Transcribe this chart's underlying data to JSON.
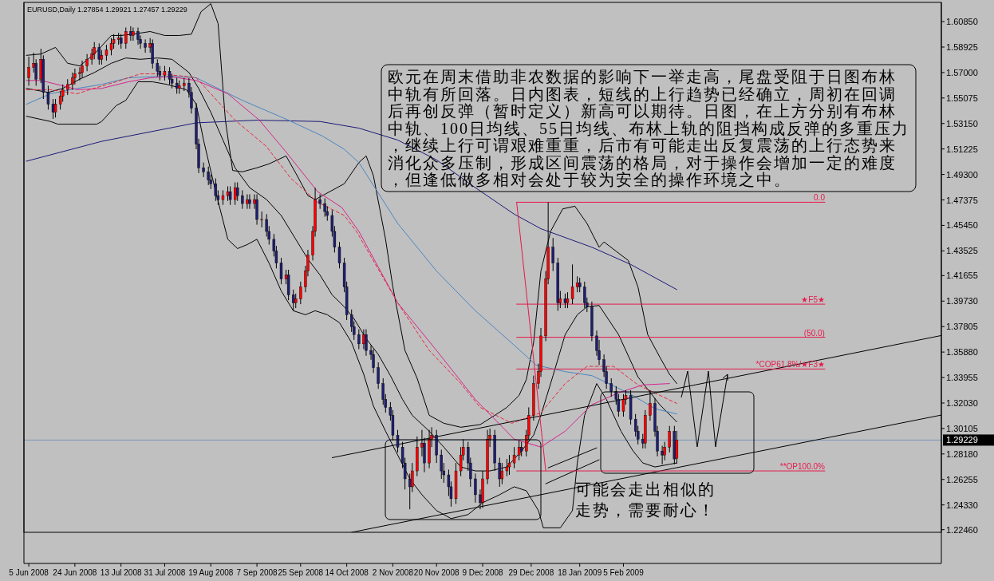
{
  "chart_data": {
    "type": "candlestick",
    "title": "EURUSD,Daily  1.27854 1.29921 1.27457 1.29229",
    "x": [
      "2008-06-05",
      "2008-06-07",
      "2008-06-08",
      "2008-06-10",
      "2008-06-11",
      "2008-06-13",
      "2008-06-15",
      "2008-06-16",
      "2008-06-18",
      "2008-06-19",
      "2008-06-21",
      "2008-06-23",
      "2008-06-24",
      "2008-06-26",
      "2008-06-27",
      "2008-06-29",
      "2008-07-01",
      "2008-07-02",
      "2008-07-04",
      "2008-07-05",
      "2008-07-07",
      "2008-07-09",
      "2008-07-10",
      "2008-07-12",
      "2008-07-13",
      "2008-07-15",
      "2008-07-17",
      "2008-07-18",
      "2008-07-20",
      "2008-07-21",
      "2008-07-23",
      "2008-07-25",
      "2008-07-26",
      "2008-07-28",
      "2008-07-29",
      "2008-07-31",
      "2008-08-02",
      "2008-08-03",
      "2008-08-05",
      "2008-08-06",
      "2008-08-08",
      "2008-08-10",
      "2008-08-11",
      "2008-08-13",
      "2008-08-14",
      "2008-08-16",
      "2008-08-18",
      "2008-08-19",
      "2008-08-21",
      "2008-08-22",
      "2008-08-24",
      "2008-08-26",
      "2008-08-27",
      "2008-08-29",
      "2008-08-30",
      "2008-09-01",
      "2008-09-03",
      "2008-09-04",
      "2008-09-06",
      "2008-09-07",
      "2008-09-09",
      "2008-09-11",
      "2008-09-12",
      "2008-09-14",
      "2008-09-15",
      "2008-09-17",
      "2008-09-19",
      "2008-09-20",
      "2008-09-22",
      "2008-09-23",
      "2008-09-25",
      "2008-09-27",
      "2008-09-28",
      "2008-09-30",
      "2008-10-01",
      "2008-10-03",
      "2008-10-05",
      "2008-10-06",
      "2008-10-08",
      "2008-10-09",
      "2008-10-11",
      "2008-10-13",
      "2008-10-14",
      "2008-10-16",
      "2008-10-17",
      "2008-10-19",
      "2008-10-21",
      "2008-10-22",
      "2008-10-24",
      "2008-10-25",
      "2008-10-27",
      "2008-10-29",
      "2008-10-30",
      "2008-11-01",
      "2008-11-02",
      "2008-11-04",
      "2008-11-06",
      "2008-11-07",
      "2008-11-09",
      "2008-11-10",
      "2008-11-12",
      "2008-11-14",
      "2008-11-15",
      "2008-11-17",
      "2008-11-18",
      "2008-11-20",
      "2008-11-22",
      "2008-11-23",
      "2008-11-25",
      "2008-11-26",
      "2008-11-28",
      "2008-11-30",
      "2008-12-01",
      "2008-12-03",
      "2008-12-04",
      "2008-12-06",
      "2008-12-08",
      "2008-12-09",
      "2008-12-11",
      "2008-12-12",
      "2008-12-14",
      "2008-12-16",
      "2008-12-17",
      "2008-12-19",
      "2008-12-20",
      "2008-12-22",
      "2008-12-24",
      "2008-12-25",
      "2008-12-27",
      "2008-12-28",
      "2008-12-30",
      "2009-01-01",
      "2009-01-02",
      "2009-01-04",
      "2009-01-05",
      "2009-01-07",
      "2009-01-09",
      "2009-01-10",
      "2009-01-12",
      "2009-01-13",
      "2009-01-15",
      "2009-01-17",
      "2009-01-18",
      "2009-01-20",
      "2009-01-21",
      "2009-01-23",
      "2009-01-25",
      "2009-01-26",
      "2009-01-28",
      "2009-01-29",
      "2009-01-31",
      "2009-02-02",
      "2009-02-03",
      "2009-02-05",
      "2009-02-06",
      "2009-02-08",
      "2009-02-10",
      "2009-02-11",
      "2009-02-13",
      "2009-02-14",
      "2009-02-16",
      "2009-02-18",
      "2009-02-19",
      "2009-02-21",
      "2009-02-22",
      "2009-02-24",
      "2009-02-26",
      "2009-02-27"
    ],
    "colors": [
      "#ff0000",
      "#ff0000",
      "#1e1e6e",
      "#ff0000",
      "#1e1e6e",
      "#1e1e6e",
      "#1e1e6e",
      "#ff0000",
      "#ff0000",
      "#ff0000",
      "#ff0000",
      "#ff0000",
      "#ff0000",
      "#ff0000",
      "#ff0000",
      "#ff0000",
      "#ff0000",
      "#ff0000",
      "#1e1e6e",
      "#ff0000",
      "#ff0000",
      "#ff0000",
      "#ff0000",
      "#ff0000",
      "#1e1e6e",
      "#ff0000",
      "#1e1e6e",
      "#ff0000",
      "#1e1e6e",
      "#1e1e6e",
      "#1e1e6e",
      "#ff0000",
      "#1e1e6e",
      "#1e1e6e",
      "#1e1e6e",
      "#ff0000",
      "#1e1e6e",
      "#1e1e6e",
      "#1e1e6e",
      "#ff0000",
      "#ff0000",
      "#1e1e6e",
      "#1e1e6e",
      "#1e1e6e",
      "#1e1e6e",
      "#1e1e6e",
      "#1e1e6e",
      "#1e1e6e",
      "#1e1e6e",
      "#1e1e6e",
      "#ff0000",
      "#ff0000",
      "#1e1e6e",
      "#ff0000",
      "#1e1e6e",
      "#1e1e6e",
      "#ff0000",
      "#1e1e6e",
      "#ff0000",
      "#1e1e6e",
      "#ff0000",
      "#1e1e6e",
      "#1e1e6e",
      "#1e1e6e",
      "#1e1e6e",
      "#1e1e6e",
      "#ff0000",
      "#1e1e6e",
      "#1e1e6e",
      "#ff0000",
      "#ff0000",
      "#ff0000",
      "#ff0000",
      "#ff0000",
      "#ff0000",
      "#1e1e6e",
      "#1e1e6e",
      "#1e1e6e",
      "#1e1e6e",
      "#1e1e6e",
      "#1e1e6e",
      "#1e1e6e",
      "#1e1e6e",
      "#1e1e6e",
      "#1e1e6e",
      "#1e1e6e",
      "#ff0000",
      "#1e1e6e",
      "#1e1e6e",
      "#1e1e6e",
      "#1e1e6e",
      "#1e1e6e",
      "#1e1e6e",
      "#1e1e6e",
      "#1e1e6e",
      "#1e1e6e",
      "#1e1e6e",
      "#1e1e6e",
      "#1e1e6e",
      "#ff0000",
      "#ff0000",
      "#ff0000",
      "#1e1e6e",
      "#ff0000",
      "#ff0000",
      "#1e1e6e",
      "#1e1e6e",
      "#1e1e6e",
      "#1e1e6e",
      "#1e1e6e",
      "#ff0000",
      "#ff0000",
      "#ff0000",
      "#1e1e6e",
      "#1e1e6e",
      "#1e1e6e",
      "#1e1e6e",
      "#ff0000",
      "#ff0000",
      "#ff0000",
      "#1e1e6e",
      "#1e1e6e",
      "#ff0000",
      "#ff0000",
      "#ff0000",
      "#ff0000",
      "#ff0000",
      "#1e1e6e",
      "#ff0000",
      "#ff0000",
      "#ff0000",
      "#ff0000",
      "#ff0000",
      "#ff0000",
      "#ff0000",
      "#1e1e6e",
      "#1e1e6e",
      "#ff0000",
      "#1e1e6e",
      "#ff0000",
      "#ff0000",
      "#ff0000",
      "#1e1e6e",
      "#1e1e6e",
      "#1e1e6e",
      "#1e1e6e",
      "#1e1e6e",
      "#1e1e6e",
      "#1e1e6e",
      "#1e1e6e",
      "#1e1e6e",
      "#1e1e6e",
      "#1e1e6e",
      "#ff0000",
      "#ff0000",
      "#1e1e6e",
      "#1e1e6e",
      "#1e1e6e",
      "#1e1e6e",
      "#ff0000",
      "#ff0000",
      "#1e1e6e",
      "#1e1e6e",
      "#1e1e6e",
      "#ff0000",
      "#ff0000",
      "#1e1e6e",
      "#ff0000"
    ],
    "ohlc": [
      [
        1.566,
        1.582,
        1.56,
        1.574
      ],
      [
        1.574,
        1.585,
        1.57,
        1.577
      ],
      [
        1.577,
        1.58,
        1.56,
        1.565
      ],
      [
        1.565,
        1.588,
        1.562,
        1.58
      ],
      [
        1.58,
        1.583,
        1.55,
        1.555
      ],
      [
        1.555,
        1.56,
        1.542,
        1.546
      ],
      [
        1.546,
        1.55,
        1.535,
        1.54
      ],
      [
        1.54,
        1.55,
        1.536,
        1.546
      ],
      [
        1.546,
        1.556,
        1.542,
        1.552
      ],
      [
        1.552,
        1.561,
        1.548,
        1.557
      ],
      [
        1.557,
        1.565,
        1.553,
        1.561
      ],
      [
        1.561,
        1.57,
        1.557,
        1.566
      ],
      [
        1.566,
        1.573,
        1.561,
        1.569
      ],
      [
        1.569,
        1.574,
        1.564,
        1.57
      ],
      [
        1.57,
        1.579,
        1.566,
        1.575
      ],
      [
        1.575,
        1.584,
        1.571,
        1.58
      ],
      [
        1.58,
        1.588,
        1.576,
        1.584
      ],
      [
        1.584,
        1.593,
        1.58,
        1.589
      ],
      [
        1.589,
        1.592,
        1.576,
        1.58
      ],
      [
        1.58,
        1.587,
        1.576,
        1.583
      ],
      [
        1.583,
        1.591,
        1.579,
        1.587
      ],
      [
        1.587,
        1.596,
        1.583,
        1.592
      ],
      [
        1.592,
        1.599,
        1.588,
        1.595
      ],
      [
        1.595,
        1.6,
        1.591,
        1.596
      ],
      [
        1.596,
        1.599,
        1.588,
        1.592
      ],
      [
        1.592,
        1.604,
        1.588,
        1.601
      ],
      [
        1.601,
        1.605,
        1.594,
        1.598
      ],
      [
        1.598,
        1.604,
        1.594,
        1.601
      ],
      [
        1.601,
        1.604,
        1.591,
        1.595
      ],
      [
        1.595,
        1.598,
        1.588,
        1.592
      ],
      [
        1.592,
        1.595,
        1.585,
        1.589
      ],
      [
        1.589,
        1.596,
        1.585,
        1.592
      ],
      [
        1.592,
        1.595,
        1.573,
        1.577
      ],
      [
        1.577,
        1.58,
        1.567,
        1.571
      ],
      [
        1.571,
        1.575,
        1.564,
        1.568
      ],
      [
        1.568,
        1.575,
        1.564,
        1.571
      ],
      [
        1.571,
        1.574,
        1.561,
        1.565
      ],
      [
        1.565,
        1.569,
        1.558,
        1.562
      ],
      [
        1.562,
        1.566,
        1.554,
        1.558
      ],
      [
        1.558,
        1.564,
        1.554,
        1.56
      ],
      [
        1.56,
        1.566,
        1.556,
        1.562
      ],
      [
        1.562,
        1.566,
        1.551,
        1.555
      ],
      [
        1.555,
        1.559,
        1.539,
        1.543
      ],
      [
        1.543,
        1.547,
        1.512,
        1.516
      ],
      [
        1.516,
        1.52,
        1.494,
        1.498
      ],
      [
        1.498,
        1.502,
        1.491,
        1.495
      ],
      [
        1.495,
        1.499,
        1.485,
        1.489
      ],
      [
        1.489,
        1.493,
        1.482,
        1.486
      ],
      [
        1.486,
        1.49,
        1.473,
        1.477
      ],
      [
        1.477,
        1.481,
        1.47,
        1.474
      ],
      [
        1.474,
        1.481,
        1.47,
        1.477
      ],
      [
        1.477,
        1.484,
        1.473,
        1.48
      ],
      [
        1.48,
        1.484,
        1.47,
        1.474
      ],
      [
        1.474,
        1.487,
        1.47,
        1.483
      ],
      [
        1.483,
        1.487,
        1.473,
        1.477
      ],
      [
        1.477,
        1.481,
        1.467,
        1.471
      ],
      [
        1.471,
        1.478,
        1.467,
        1.474
      ],
      [
        1.474,
        1.478,
        1.467,
        1.471
      ],
      [
        1.471,
        1.478,
        1.467,
        1.474
      ],
      [
        1.474,
        1.478,
        1.455,
        1.459
      ],
      [
        1.459,
        1.465,
        1.453,
        1.459
      ],
      [
        1.459,
        1.463,
        1.446,
        1.45
      ],
      [
        1.45,
        1.454,
        1.44,
        1.444
      ],
      [
        1.444,
        1.448,
        1.431,
        1.435
      ],
      [
        1.435,
        1.439,
        1.422,
        1.426
      ],
      [
        1.426,
        1.43,
        1.41,
        1.414
      ],
      [
        1.414,
        1.421,
        1.41,
        1.417
      ],
      [
        1.417,
        1.421,
        1.398,
        1.402
      ],
      [
        1.402,
        1.406,
        1.39,
        1.396
      ],
      [
        1.396,
        1.403,
        1.392,
        1.399
      ],
      [
        1.399,
        1.412,
        1.395,
        1.408
      ],
      [
        1.408,
        1.424,
        1.404,
        1.42
      ],
      [
        1.42,
        1.436,
        1.416,
        1.432
      ],
      [
        1.432,
        1.454,
        1.428,
        1.45
      ],
      [
        1.45,
        1.483,
        1.446,
        1.474
      ],
      [
        1.474,
        1.478,
        1.467,
        1.471
      ],
      [
        1.471,
        1.475,
        1.461,
        1.465
      ],
      [
        1.465,
        1.469,
        1.458,
        1.462
      ],
      [
        1.462,
        1.466,
        1.446,
        1.45
      ],
      [
        1.45,
        1.454,
        1.434,
        1.438
      ],
      [
        1.438,
        1.442,
        1.422,
        1.426
      ],
      [
        1.426,
        1.43,
        1.404,
        1.408
      ],
      [
        1.408,
        1.412,
        1.383,
        1.387
      ],
      [
        1.387,
        1.391,
        1.374,
        1.378
      ],
      [
        1.378,
        1.382,
        1.368,
        1.372
      ],
      [
        1.372,
        1.376,
        1.361,
        1.365
      ],
      [
        1.365,
        1.376,
        1.361,
        1.372
      ],
      [
        1.372,
        1.376,
        1.356,
        1.36
      ],
      [
        1.36,
        1.364,
        1.353,
        1.357
      ],
      [
        1.357,
        1.361,
        1.343,
        1.347
      ],
      [
        1.347,
        1.351,
        1.331,
        1.335
      ],
      [
        1.335,
        1.339,
        1.319,
        1.323
      ],
      [
        1.323,
        1.327,
        1.313,
        1.317
      ],
      [
        1.317,
        1.321,
        1.307,
        1.311
      ],
      [
        1.311,
        1.315,
        1.292,
        1.296
      ],
      [
        1.296,
        1.3,
        1.283,
        1.287
      ],
      [
        1.287,
        1.291,
        1.271,
        1.275
      ],
      [
        1.275,
        1.279,
        1.255,
        1.263
      ],
      [
        1.263,
        1.267,
        1.24,
        1.257
      ],
      [
        1.257,
        1.275,
        1.253,
        1.269
      ],
      [
        1.269,
        1.295,
        1.265,
        1.287
      ],
      [
        1.287,
        1.3,
        1.28,
        1.29
      ],
      [
        1.29,
        1.294,
        1.268,
        1.275
      ],
      [
        1.275,
        1.3,
        1.271,
        1.293
      ],
      [
        1.293,
        1.302,
        1.287,
        1.296
      ],
      [
        1.296,
        1.3,
        1.275,
        1.281
      ],
      [
        1.281,
        1.285,
        1.263,
        1.269
      ],
      [
        1.269,
        1.275,
        1.26,
        1.266
      ],
      [
        1.266,
        1.27,
        1.25,
        1.257
      ],
      [
        1.257,
        1.261,
        1.242,
        1.248
      ],
      [
        1.248,
        1.275,
        1.244,
        1.269
      ],
      [
        1.269,
        1.287,
        1.265,
        1.281
      ],
      [
        1.281,
        1.293,
        1.277,
        1.287
      ],
      [
        1.287,
        1.291,
        1.269,
        1.275
      ],
      [
        1.275,
        1.279,
        1.257,
        1.263
      ],
      [
        1.263,
        1.267,
        1.245,
        1.251
      ],
      [
        1.251,
        1.255,
        1.24,
        1.245
      ],
      [
        1.245,
        1.269,
        1.241,
        1.263
      ],
      [
        1.263,
        1.3,
        1.259,
        1.293
      ],
      [
        1.293,
        1.301,
        1.287,
        1.296
      ],
      [
        1.296,
        1.3,
        1.269,
        1.275
      ],
      [
        1.275,
        1.279,
        1.257,
        1.263
      ],
      [
        1.263,
        1.275,
        1.259,
        1.269
      ],
      [
        1.269,
        1.278,
        1.265,
        1.272
      ],
      [
        1.272,
        1.281,
        1.266,
        1.275
      ],
      [
        1.275,
        1.287,
        1.271,
        1.281
      ],
      [
        1.281,
        1.292,
        1.277,
        1.287
      ],
      [
        1.287,
        1.291,
        1.28,
        1.284
      ],
      [
        1.284,
        1.3,
        1.28,
        1.296
      ],
      [
        1.296,
        1.317,
        1.292,
        1.311
      ],
      [
        1.311,
        1.341,
        1.307,
        1.335
      ],
      [
        1.335,
        1.35,
        1.331,
        1.344
      ],
      [
        1.344,
        1.377,
        1.34,
        1.371
      ],
      [
        1.371,
        1.42,
        1.367,
        1.414
      ],
      [
        1.414,
        1.472,
        1.41,
        1.438
      ],
      [
        1.438,
        1.445,
        1.42,
        1.426
      ],
      [
        1.426,
        1.43,
        1.39,
        1.396
      ],
      [
        1.396,
        1.405,
        1.392,
        1.399
      ],
      [
        1.399,
        1.403,
        1.392,
        1.396
      ],
      [
        1.396,
        1.404,
        1.392,
        1.399
      ],
      [
        1.399,
        1.425,
        1.395,
        1.408
      ],
      [
        1.408,
        1.416,
        1.404,
        1.411
      ],
      [
        1.411,
        1.415,
        1.404,
        1.408
      ],
      [
        1.408,
        1.412,
        1.392,
        1.396
      ],
      [
        1.396,
        1.4,
        1.389,
        1.393
      ],
      [
        1.393,
        1.397,
        1.367,
        1.371
      ],
      [
        1.371,
        1.375,
        1.356,
        1.36
      ],
      [
        1.36,
        1.368,
        1.349,
        1.353
      ],
      [
        1.353,
        1.357,
        1.34,
        1.344
      ],
      [
        1.344,
        1.348,
        1.331,
        1.335
      ],
      [
        1.335,
        1.339,
        1.325,
        1.329
      ],
      [
        1.329,
        1.333,
        1.319,
        1.323
      ],
      [
        1.323,
        1.327,
        1.31,
        1.314
      ],
      [
        1.314,
        1.327,
        1.31,
        1.323
      ],
      [
        1.323,
        1.33,
        1.319,
        1.326
      ],
      [
        1.326,
        1.33,
        1.304,
        1.308
      ],
      [
        1.308,
        1.312,
        1.295,
        1.299
      ],
      [
        1.299,
        1.303,
        1.289,
        1.293
      ],
      [
        1.293,
        1.297,
        1.286,
        1.29
      ],
      [
        1.29,
        1.315,
        1.286,
        1.311
      ],
      [
        1.311,
        1.33,
        1.307,
        1.32
      ],
      [
        1.32,
        1.324,
        1.295,
        1.299
      ],
      [
        1.299,
        1.303,
        1.28,
        1.284
      ],
      [
        1.284,
        1.288,
        1.274,
        1.281
      ],
      [
        1.281,
        1.291,
        1.277,
        1.287
      ],
      [
        1.287,
        1.303,
        1.283,
        1.299
      ],
      [
        1.299,
        1.303,
        1.274,
        1.278
      ],
      [
        1.27854,
        1.29921,
        1.27457,
        1.29229
      ]
    ],
    "series": [
      {
        "type": "line",
        "color": "#000000",
        "x": [
          "2008-06-04",
          "2008-06-10",
          "2008-06-16",
          "2008-06-21",
          "2008-06-26",
          "2008-07-02",
          "2008-07-09",
          "2008-07-13",
          "2008-07-18",
          "2008-07-25",
          "2008-07-31",
          "2008-08-06",
          "2008-08-11",
          "2008-08-15",
          "2008-08-19",
          "2008-08-22",
          "2008-08-25",
          "2008-08-28",
          "2008-09-01",
          "2008-09-07",
          "2008-09-12",
          "2008-09-19",
          "2008-09-23",
          "2008-09-28",
          "2008-10-01",
          "2008-10-05",
          "2008-10-13",
          "2008-10-19",
          "2008-10-22",
          "2008-10-25",
          "2008-10-30",
          "2008-11-02",
          "2008-11-07",
          "2008-11-12",
          "2008-11-17",
          "2008-11-23",
          "2008-11-30",
          "2008-12-08",
          "2008-12-14",
          "2008-12-19",
          "2008-12-24",
          "2008-12-27",
          "2008-12-30",
          "2009-01-02",
          "2009-01-06",
          "2009-01-11",
          "2009-01-16",
          "2009-01-21",
          "2009-01-26",
          "2009-01-28",
          "2009-02-02",
          "2009-02-07",
          "2009-02-11",
          "2009-02-15",
          "2009-02-20",
          "2009-02-24",
          "2009-02-27"
        ],
        "values": [
          1.583,
          1.584,
          1.589,
          1.577,
          1.575,
          1.584,
          1.598,
          1.598,
          1.599,
          1.601,
          1.598,
          1.598,
          1.599,
          1.616,
          1.622,
          1.607,
          1.534,
          1.496,
          1.495,
          1.498,
          1.501,
          1.507,
          1.494,
          1.477,
          1.474,
          1.478,
          1.486,
          1.502,
          1.507,
          1.492,
          1.444,
          1.408,
          1.36,
          1.339,
          1.311,
          1.305,
          1.302,
          1.304,
          1.311,
          1.317,
          1.326,
          1.338,
          1.366,
          1.42,
          1.45,
          1.467,
          1.469,
          1.456,
          1.438,
          1.442,
          1.435,
          1.428,
          1.408,
          1.372,
          1.355,
          1.342,
          1.335
        ]
      },
      {
        "type": "line",
        "color": "#000000",
        "x": [
          "2008-06-04",
          "2008-06-13",
          "2008-06-19",
          "2008-06-26",
          "2008-07-02",
          "2008-07-09",
          "2008-07-15",
          "2008-07-21",
          "2008-07-28",
          "2008-08-03",
          "2008-08-10",
          "2008-08-14",
          "2008-08-19",
          "2008-08-24",
          "2008-08-29",
          "2008-09-04",
          "2008-09-11",
          "2008-09-17",
          "2008-09-23",
          "2008-09-28",
          "2008-10-03",
          "2008-10-08",
          "2008-10-13",
          "2008-10-17",
          "2008-10-22",
          "2008-10-27",
          "2008-11-01",
          "2008-11-06",
          "2008-11-10",
          "2008-11-17",
          "2008-11-23",
          "2008-11-30",
          "2008-12-06",
          "2008-12-12",
          "2008-12-19",
          "2008-12-25",
          "2008-12-30",
          "2009-01-02",
          "2009-01-07",
          "2009-01-12",
          "2009-01-17",
          "2009-01-21",
          "2009-01-26",
          "2009-02-03",
          "2009-02-11",
          "2009-02-20",
          "2009-02-27"
        ],
        "values": [
          1.558,
          1.555,
          1.558,
          1.565,
          1.57,
          1.577,
          1.581,
          1.58,
          1.581,
          1.58,
          1.57,
          1.558,
          1.54,
          1.519,
          1.498,
          1.483,
          1.474,
          1.462,
          1.444,
          1.429,
          1.417,
          1.402,
          1.393,
          1.384,
          1.369,
          1.357,
          1.341,
          1.323,
          1.311,
          1.299,
          1.287,
          1.272,
          1.269,
          1.269,
          1.272,
          1.284,
          1.296,
          1.311,
          1.341,
          1.372,
          1.387,
          1.393,
          1.394,
          1.372,
          1.34,
          1.319,
          1.306
        ]
      },
      {
        "type": "line",
        "color": "#000000",
        "x": [
          "2008-06-04",
          "2008-06-14",
          "2008-06-17",
          "2008-07-03",
          "2008-07-05",
          "2008-07-11",
          "2008-07-15",
          "2008-07-20",
          "2008-07-26",
          "2008-08-01",
          "2008-08-09",
          "2008-08-13",
          "2008-08-16",
          "2008-08-21",
          "2008-08-26",
          "2008-08-30",
          "2008-09-03",
          "2008-09-07",
          "2008-09-12",
          "2008-09-17",
          "2008-09-22",
          "2008-09-27",
          "2008-10-01",
          "2008-10-06",
          "2008-10-11",
          "2008-10-16",
          "2008-10-21",
          "2008-10-25",
          "2008-10-30",
          "2008-11-04",
          "2008-11-09",
          "2008-11-14",
          "2008-11-20",
          "2008-11-26",
          "2008-12-03",
          "2008-12-09",
          "2008-12-16",
          "2008-12-22",
          "2008-12-27",
          "2009-01-01",
          "2009-01-03",
          "2009-01-10",
          "2009-01-15",
          "2009-01-17",
          "2009-01-20",
          "2009-01-25",
          "2009-01-29",
          "2009-02-04",
          "2009-02-09",
          "2009-02-13",
          "2009-02-18",
          "2009-02-24",
          "2009-02-27"
        ],
        "values": [
          1.537,
          1.533,
          1.531,
          1.531,
          1.533,
          1.545,
          1.549,
          1.563,
          1.563,
          1.561,
          1.557,
          1.546,
          1.519,
          1.48,
          1.444,
          1.437,
          1.44,
          1.444,
          1.426,
          1.405,
          1.39,
          1.387,
          1.39,
          1.387,
          1.381,
          1.366,
          1.342,
          1.318,
          1.299,
          1.281,
          1.263,
          1.251,
          1.239,
          1.233,
          1.236,
          1.245,
          1.251,
          1.257,
          1.254,
          1.239,
          1.226,
          1.226,
          1.239,
          1.275,
          1.311,
          1.335,
          1.323,
          1.299,
          1.284,
          1.275,
          1.272,
          1.274,
          1.275
        ]
      },
      {
        "type": "line",
        "color": "#1a1a78",
        "x": [
          "2008-06-04",
          "2008-07-05",
          "2008-08-13",
          "2008-09-07",
          "2008-10-03",
          "2008-10-19",
          "2008-11-04",
          "2008-11-20",
          "2008-12-06",
          "2008-12-22",
          "2009-01-02",
          "2009-01-23",
          "2009-02-08",
          "2009-02-27"
        ],
        "values": [
          1.503,
          1.518,
          1.532,
          1.534,
          1.533,
          1.528,
          1.519,
          1.504,
          1.483,
          1.463,
          1.452,
          1.438,
          1.425,
          1.406
        ]
      },
      {
        "type": "line",
        "color": "#4a86c0",
        "x": [
          "2008-06-04",
          "2008-06-14",
          "2008-06-25",
          "2008-07-05",
          "2008-07-16",
          "2008-07-27",
          "2008-08-06",
          "2008-08-13",
          "2008-09-01",
          "2008-09-20",
          "2008-10-04",
          "2008-10-13",
          "2008-10-19",
          "2008-11-04",
          "2008-11-20",
          "2008-12-06",
          "2008-12-22",
          "2008-12-31",
          "2009-01-12",
          "2009-01-23",
          "2009-02-08",
          "2009-02-18",
          "2009-02-27"
        ],
        "values": [
          1.546,
          1.554,
          1.558,
          1.561,
          1.566,
          1.567,
          1.567,
          1.566,
          1.549,
          1.534,
          1.522,
          1.512,
          1.502,
          1.456,
          1.42,
          1.39,
          1.364,
          1.349,
          1.344,
          1.341,
          1.327,
          1.316,
          1.312
        ]
      },
      {
        "type": "line",
        "color": "#d6248c",
        "x": [
          "2008-06-04",
          "2008-06-10",
          "2008-06-19",
          "2008-06-25",
          "2008-07-05",
          "2008-07-16",
          "2008-07-25",
          "2008-08-02",
          "2008-08-13",
          "2008-08-26",
          "2008-09-08",
          "2008-09-19",
          "2008-10-02",
          "2008-10-12",
          "2008-10-19",
          "2008-11-04",
          "2008-11-20",
          "2008-12-06",
          "2008-12-22",
          "2009-01-02",
          "2009-01-12",
          "2009-01-23",
          "2009-02-03",
          "2009-02-13",
          "2009-02-24"
        ],
        "values": [
          1.564,
          1.564,
          1.56,
          1.557,
          1.558,
          1.563,
          1.566,
          1.567,
          1.564,
          1.554,
          1.534,
          1.51,
          1.48,
          1.468,
          1.45,
          1.396,
          1.36,
          1.323,
          1.293,
          1.287,
          1.299,
          1.319,
          1.328,
          1.334,
          1.335
        ]
      },
      {
        "type": "line",
        "color": "#e8283c",
        "line_style": "dashed",
        "x": [
          "2008-06-04",
          "2008-06-14",
          "2008-06-25",
          "2008-06-30",
          "2008-07-11",
          "2008-07-21",
          "2008-07-29",
          "2008-08-09",
          "2008-08-13",
          "2008-08-29",
          "2008-09-11",
          "2008-09-21",
          "2008-10-02",
          "2008-10-13",
          "2008-10-18",
          "2008-11-04",
          "2008-11-17",
          "2008-11-30",
          "2008-12-08",
          "2008-12-21",
          "2009-01-02",
          "2009-01-12",
          "2009-01-21",
          "2009-02-01",
          "2009-02-11",
          "2009-02-27"
        ],
        "values": [
          1.557,
          1.557,
          1.554,
          1.557,
          1.563,
          1.569,
          1.569,
          1.567,
          1.566,
          1.534,
          1.514,
          1.49,
          1.472,
          1.462,
          1.45,
          1.396,
          1.36,
          1.335,
          1.317,
          1.305,
          1.313,
          1.335,
          1.348,
          1.348,
          1.334,
          1.32
        ]
      },
      {
        "type": "line",
        "color": "#000000",
        "x": [
          "2008-10-08",
          "2009-06-16"
        ],
        "values": [
          1.279,
          1.3713
        ]
      },
      {
        "type": "line",
        "color": "#000000",
        "x": [
          "2008-10-16",
          "2009-06-16"
        ],
        "values": [
          1.2226,
          1.3112
        ]
      },
      {
        "type": "line",
        "color": "#000000",
        "x": [
          "2009-01-05",
          "2009-01-25"
        ],
        "values": [
          1.2713,
          1.2864
        ]
      },
      {
        "type": "line",
        "color": "#000000",
        "x": [
          "2009-01-04",
          "2009-01-26"
        ],
        "values": [
          1.2593,
          1.2774
        ]
      },
      {
        "type": "line",
        "color": "#e6194b",
        "x": [
          "2008-12-23",
          "2009-01-04"
        ],
        "values": [
          1.472,
          1.269
        ]
      },
      {
        "type": "line",
        "color": "#e6194b",
        "x": [
          "2008-12-23",
          "2009-04-29"
        ],
        "values": [
          1.472,
          1.472
        ]
      },
      {
        "type": "line",
        "color": "#e6194b",
        "x": [
          "2008-12-23",
          "2009-04-29"
        ],
        "values": [
          1.395,
          1.395
        ]
      },
      {
        "type": "line",
        "color": "#e6194b",
        "x": [
          "2008-12-23",
          "2009-04-29"
        ],
        "values": [
          1.37,
          1.37
        ]
      },
      {
        "type": "line",
        "color": "#e6194b",
        "x": [
          "2008-12-23",
          "2009-04-29"
        ],
        "values": [
          1.346,
          1.346
        ]
      },
      {
        "type": "line",
        "color": "#e6194b",
        "x": [
          "2008-12-23",
          "2009-04-29"
        ],
        "values": [
          1.269,
          1.269
        ]
      }
    ],
    "ref_lines": [
      {
        "axis": "y",
        "value": 1.29229,
        "label": "1.29229",
        "color": "#7c97b8"
      }
    ],
    "annotations": [
      "欧元在周末借助非农数据的影响下一举走高，尾盘受阻于日图布林中轨有所回落。日内图表，短线的上行趋势已经确立，周初在回调后再创反弹（暂时定义）新高可以期待。日图，在上方分别有布林中轨、100日均线、55日均线、布林上轨的阻挡构成反弹的多重压力，继续上行可谓艰难重重，后市有可能走出反复震荡的上行态势来消化众多压制，形成区间震荡的格局，对于操作会增加一定的难度，但逢低做多相对会处于较为安全的操作环境之中。",
      {
        "text": "可能会走出相似的走势，需要耐心！",
        "x": "2009-01-16",
        "y": 1.262
      },
      {
        "text": "0.0",
        "x": "2009-04-29",
        "y": 1.472
      },
      {
        "text": "★F5★",
        "x": "2009-04-29",
        "y": 1.395
      },
      {
        "text": "(50.0)",
        "x": "2009-04-29",
        "y": 1.37
      },
      {
        "text": "*COP61.8%/★F3★",
        "x": "2009-04-29",
        "y": 1.346
      },
      {
        "text": "**OP100.0%",
        "x": "2009-04-29",
        "y": 1.269
      }
    ],
    "xlim": [
      "2008-06-03",
      "2009-06-16"
    ],
    "xticks": [
      {
        "value": "2008-06-05",
        "label": "5 Jun 2008"
      },
      {
        "value": "2008-06-24",
        "label": "24 Jun 2008"
      },
      {
        "value": "2008-07-13",
        "label": "13 Jul 2008"
      },
      {
        "value": "2008-07-31",
        "label": "31 Jul 2008"
      },
      {
        "value": "2008-08-19",
        "label": "19 Aug 2008"
      },
      {
        "value": "2008-09-07",
        "label": "7 Sep 2008"
      },
      {
        "value": "2008-09-25",
        "label": "25 Sep 2008"
      },
      {
        "value": "2008-10-14",
        "label": "14 Oct 2008"
      },
      {
        "value": "2008-11-02",
        "label": "2 Nov 2008"
      },
      {
        "value": "2008-11-20",
        "label": "20 Nov 2008"
      },
      {
        "value": "2008-12-09",
        "label": "9 Dec 2008"
      },
      {
        "value": "2008-12-29",
        "label": "29 Dec 2008"
      },
      {
        "value": "2009-01-18",
        "label": "18 Jan 2009"
      },
      {
        "value": "2009-02-05",
        "label": "5 Feb 2009"
      }
    ],
    "ylim": [
      1.2226,
      1.623
    ],
    "yticks": [
      {
        "value": 1.6085,
        "label": "1.60850"
      },
      {
        "value": 1.58925,
        "label": "1.58925"
      },
      {
        "value": 1.57,
        "label": "1.57000"
      },
      {
        "value": 1.55075,
        "label": "1.55075"
      },
      {
        "value": 1.5315,
        "label": "1.53150"
      },
      {
        "value": 1.51225,
        "label": "1.51225"
      },
      {
        "value": 1.493,
        "label": "1.49300"
      },
      {
        "value": 1.47375,
        "label": "1.47375"
      },
      {
        "value": 1.4545,
        "label": "1.45450"
      },
      {
        "value": 1.43525,
        "label": "1.43525"
      },
      {
        "value": 1.41655,
        "label": "1.41655"
      },
      {
        "value": 1.3973,
        "label": "1.39730"
      },
      {
        "value": 1.37805,
        "label": "1.37805"
      },
      {
        "value": 1.3588,
        "label": "1.35880"
      },
      {
        "value": 1.33955,
        "label": "1.33955"
      },
      {
        "value": 1.3203,
        "label": "1.32030"
      },
      {
        "value": 1.30105,
        "label": "1.30105"
      },
      {
        "value": 1.2818,
        "label": "1.28180"
      },
      {
        "value": 1.26255,
        "label": "1.26255"
      },
      {
        "value": 1.2433,
        "label": "1.24330"
      },
      {
        "value": 1.2246,
        "label": "1.22460"
      }
    ]
  }
}
